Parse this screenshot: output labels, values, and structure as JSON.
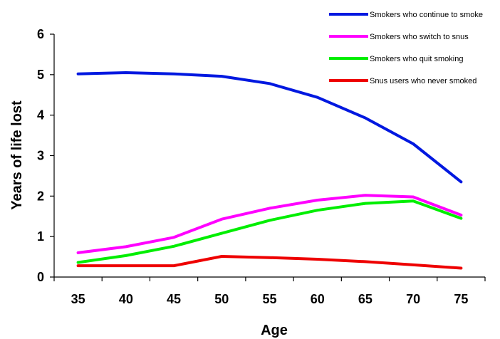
{
  "chart_data": {
    "type": "line",
    "title": "",
    "xlabel": "Age",
    "ylabel": "Years of life lost",
    "x": [
      35,
      40,
      45,
      50,
      55,
      60,
      65,
      70,
      75
    ],
    "xlim": [
      32.5,
      77.5
    ],
    "ylim": [
      0,
      6
    ],
    "yticks": [
      0,
      1,
      2,
      3,
      4,
      5,
      6
    ],
    "grid": false,
    "legend_position": "top-right",
    "series": [
      {
        "name": "Smokers who continue to smoke",
        "color": "#0018e0",
        "values": [
          5.02,
          5.05,
          5.02,
          4.96,
          4.78,
          4.44,
          3.93,
          3.29,
          2.35
        ]
      },
      {
        "name": "Smokers who switch to snus",
        "color": "#ff00ff",
        "values": [
          0.6,
          0.75,
          0.98,
          1.43,
          1.7,
          1.9,
          2.02,
          1.98,
          1.53
        ]
      },
      {
        "name": "Smokers who quit smoking",
        "color": "#00ee00",
        "values": [
          0.36,
          0.53,
          0.76,
          1.08,
          1.4,
          1.65,
          1.82,
          1.88,
          1.45
        ]
      },
      {
        "name": "Snus users who never smoked",
        "color": "#ee0000",
        "values": [
          0.28,
          0.28,
          0.28,
          0.51,
          0.48,
          0.44,
          0.38,
          0.3,
          0.22
        ]
      }
    ]
  }
}
